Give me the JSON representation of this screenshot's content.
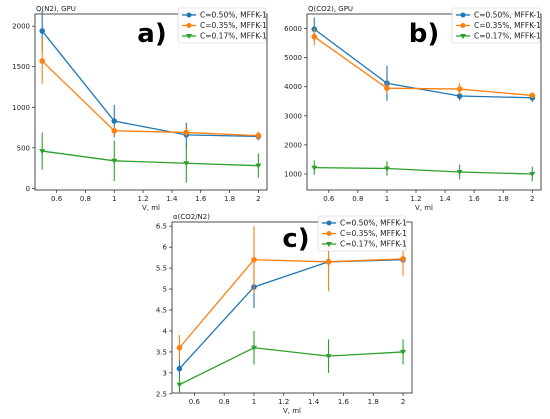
{
  "chart_data": [
    {
      "type": "line",
      "title": "a)",
      "ylabel": "Q(N2), GPU",
      "xlabel": "V, ml",
      "x": [
        0.5,
        1.0,
        1.5,
        2.0
      ],
      "xlim": [
        0.45,
        2.06
      ],
      "ylim": [
        -20,
        2150
      ],
      "xticks": [
        0.6,
        0.8,
        1.0,
        1.2,
        1.4,
        1.6,
        1.8,
        2.0
      ],
      "yticks": [
        0,
        500,
        1000,
        1500,
        2000
      ],
      "legend_loc": "top-right",
      "series": [
        {
          "name": "C=0.50%, MFFK-1",
          "color": "#1f77b4",
          "marker": "circle",
          "values": [
            1940,
            830,
            660,
            640
          ],
          "err": [
            250,
            200,
            150,
            50
          ]
        },
        {
          "name": "C=0.35%, MFFK-1",
          "color": "#ff7f0e",
          "marker": "circle",
          "values": [
            1570,
            710,
            690,
            650
          ],
          "err": [
            280,
            60,
            50,
            50
          ]
        },
        {
          "name": "C=0.17%, MFFK-1",
          "color": "#2ca02c",
          "marker": "triangle",
          "values": [
            460,
            340,
            310,
            280
          ],
          "err": [
            230,
            250,
            240,
            150
          ]
        }
      ]
    },
    {
      "type": "line",
      "title": "b)",
      "ylabel": "Q(CO2), GPU",
      "xlabel": "V, ml",
      "x": [
        0.5,
        1.0,
        1.5,
        2.0
      ],
      "xlim": [
        0.45,
        2.06
      ],
      "ylim": [
        450,
        6500
      ],
      "xticks": [
        0.6,
        0.8,
        1.0,
        1.2,
        1.4,
        1.6,
        1.8,
        2.0
      ],
      "yticks": [
        1000,
        2000,
        3000,
        4000,
        5000,
        6000
      ],
      "legend_loc": "top-right",
      "series": [
        {
          "name": "C=0.50%, MFFK-1",
          "color": "#1f77b4",
          "marker": "circle",
          "values": [
            5980,
            4120,
            3680,
            3620
          ],
          "err": [
            400,
            600,
            150,
            150
          ]
        },
        {
          "name": "C=0.35%, MFFK-1",
          "color": "#ff7f0e",
          "marker": "circle",
          "values": [
            5720,
            3950,
            3920,
            3700
          ],
          "err": [
            300,
            200,
            200,
            100
          ]
        },
        {
          "name": "C=0.17%, MFFK-1",
          "color": "#2ca02c",
          "marker": "triangle",
          "values": [
            1220,
            1190,
            1070,
            1000
          ],
          "err": [
            250,
            250,
            250,
            250
          ]
        }
      ]
    },
    {
      "type": "line",
      "title": "c)",
      "ylabel": "α(CO2/N2)",
      "xlabel": "V, ml",
      "x": [
        0.5,
        1.0,
        1.5,
        2.0
      ],
      "xlim": [
        0.45,
        2.06
      ],
      "ylim": [
        2.52,
        6.6
      ],
      "xticks": [
        0.6,
        0.8,
        1.0,
        1.2,
        1.4,
        1.6,
        1.8,
        2.0
      ],
      "yticks": [
        2.5,
        3.0,
        3.5,
        4.0,
        4.5,
        5.0,
        5.5,
        6.0,
        6.5
      ],
      "legend_loc": "top-right",
      "series": [
        {
          "name": "C=0.50%, MFFK-1",
          "color": "#1f77b4",
          "marker": "circle",
          "values": [
            3.1,
            5.05,
            5.65,
            5.7
          ],
          "err": [
            0.2,
            0.5,
            0.1,
            0.1
          ]
        },
        {
          "name": "C=0.35%, MFFK-1",
          "color": "#ff7f0e",
          "marker": "circle",
          "values": [
            3.6,
            5.7,
            5.65,
            5.72
          ],
          "err": [
            0.3,
            0.8,
            0.7,
            0.4
          ]
        },
        {
          "name": "C=0.17%, MFFK-1",
          "color": "#2ca02c",
          "marker": "triangle",
          "values": [
            2.72,
            3.6,
            3.4,
            3.5
          ],
          "err": [
            0.2,
            0.4,
            0.4,
            0.3
          ]
        }
      ]
    }
  ]
}
